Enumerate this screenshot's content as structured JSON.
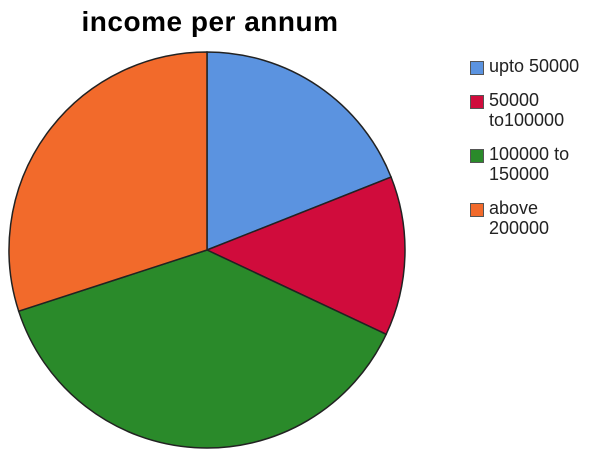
{
  "chart_data": {
    "type": "pie",
    "title": "income per annum",
    "categories": [
      "upto 50000",
      "50000 to100000",
      "100000 to 150000",
      "above 200000"
    ],
    "values": [
      19,
      13,
      38,
      30
    ],
    "colors": [
      "#5b93e0",
      "#d00c3c",
      "#2a8a2a",
      "#f26a2b"
    ],
    "legend_position": "right"
  }
}
